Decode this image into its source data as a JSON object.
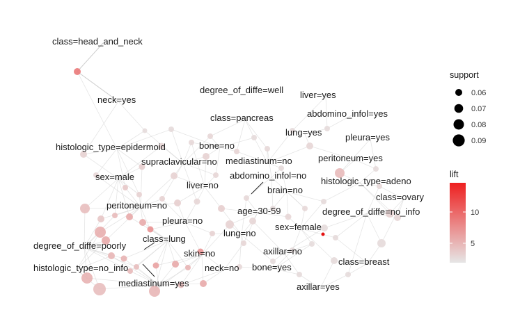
{
  "chart_data": {
    "type": "network",
    "item_labels": [
      "class=head_and_neck",
      "neck=yes",
      "degree_of_diffe=well",
      "liver=yes",
      "class=pancreas",
      "abdomino_infol=yes",
      "lung=yes",
      "pleura=yes",
      "histologic_type=epidermoid",
      "bone=no",
      "mediastinum=no",
      "peritoneum=yes",
      "supraclavicular=no",
      "abdomino_infol=no",
      "sex=male",
      "liver=no",
      "brain=no",
      "histologic_type=adeno",
      "class=ovary",
      "peritoneum=no",
      "age=30-59",
      "degree_of_diffe=no_info",
      "pleura=no",
      "sex=female",
      "lung=no",
      "class=lung",
      "degree_of_diffe=poorly",
      "axillar=no",
      "skin=no",
      "class=breast",
      "histologic_type=no_info",
      "neck=no",
      "bone=yes",
      "mediastinum=yes",
      "axillar=yes"
    ],
    "legend_size": {
      "title": "support",
      "values": [
        "0.06",
        "0.07",
        "0.08",
        "0.09"
      ]
    },
    "legend_color": {
      "title": "lift",
      "ticks": [
        "10",
        "5"
      ],
      "range": [
        2,
        14
      ],
      "color_low": "#e6e6e6",
      "color_high": "#ee1f1f"
    }
  }
}
